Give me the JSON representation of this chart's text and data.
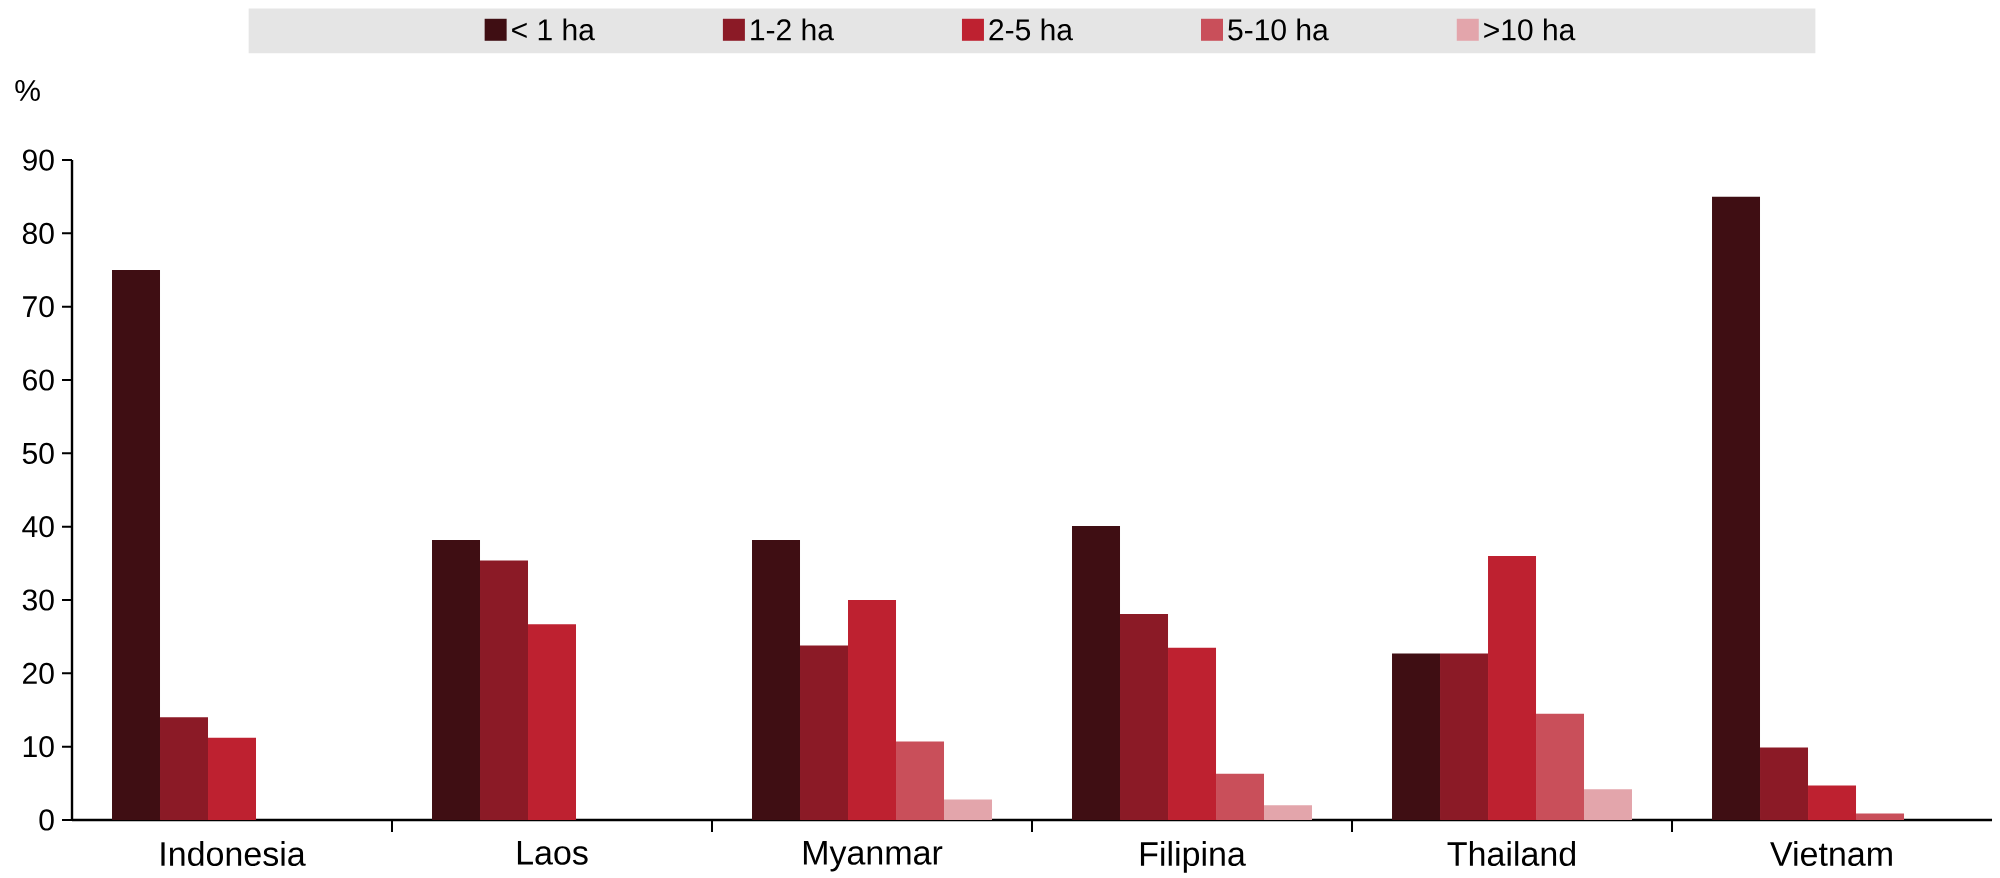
{
  "chart_data": {
    "type": "bar",
    "ylabel": "%",
    "categories": [
      "Indonesia",
      "Laos",
      "Myanmar",
      "Filipina",
      "Thailand",
      "Vietnam"
    ],
    "series": [
      {
        "name": "< 1 ha",
        "color": "#3f0e13",
        "values": [
          75,
          38.2,
          38.2,
          40.1,
          22.7,
          85
        ]
      },
      {
        "name": "1-2 ha",
        "color": "#8b1a26",
        "values": [
          14,
          35.4,
          23.8,
          28.1,
          22.7,
          9.9
        ]
      },
      {
        "name": "2-5 ha",
        "color": "#be2130",
        "values": [
          11.2,
          26.7,
          30,
          23.5,
          36,
          4.7
        ]
      },
      {
        "name": "5-10 ha",
        "color": "#c94f5a",
        "values": [
          null,
          null,
          10.7,
          6.3,
          14.5,
          0.9
        ]
      },
      {
        "name": ">10 ha",
        "color": "#e3a5ab",
        "values": [
          null,
          null,
          2.8,
          2,
          4.2,
          null
        ]
      }
    ],
    "ylim": [
      0,
      90
    ],
    "yticks": [
      0,
      10,
      20,
      30,
      40,
      50,
      60,
      70,
      80,
      90
    ],
    "legend": "top"
  }
}
